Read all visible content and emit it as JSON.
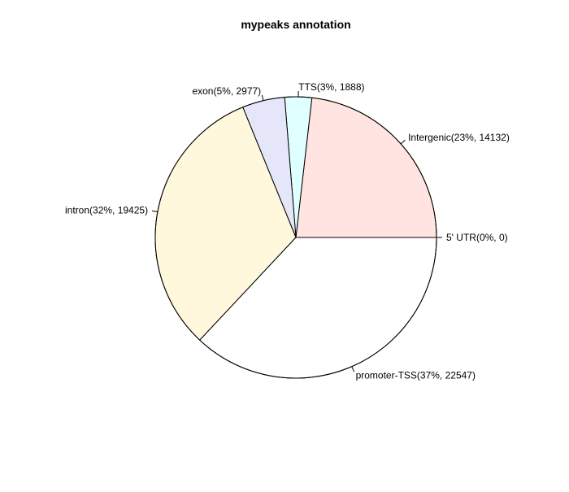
{
  "chart_data": {
    "type": "pie",
    "title": "mypeaks annotation",
    "start_angle_deg": 0,
    "direction": "counterclockwise",
    "slices": [
      {
        "label": "5' UTR(0%, 0)",
        "value": 0,
        "color": "#ffffff"
      },
      {
        "label": "Intergenic(23%, 14132)",
        "value": 14132,
        "color": "#ffe4e1"
      },
      {
        "label": "TTS(3%, 1888)",
        "value": 1888,
        "color": "#e0ffff"
      },
      {
        "label": "exon(5%, 2977)",
        "value": 2977,
        "color": "#e6e6fa"
      },
      {
        "label": "intron(32%, 19425)",
        "value": 19425,
        "color": "#fff8dc"
      },
      {
        "label": "promoter-TSS(37%, 22547)",
        "value": 22547,
        "color": "#ffffff"
      }
    ]
  }
}
